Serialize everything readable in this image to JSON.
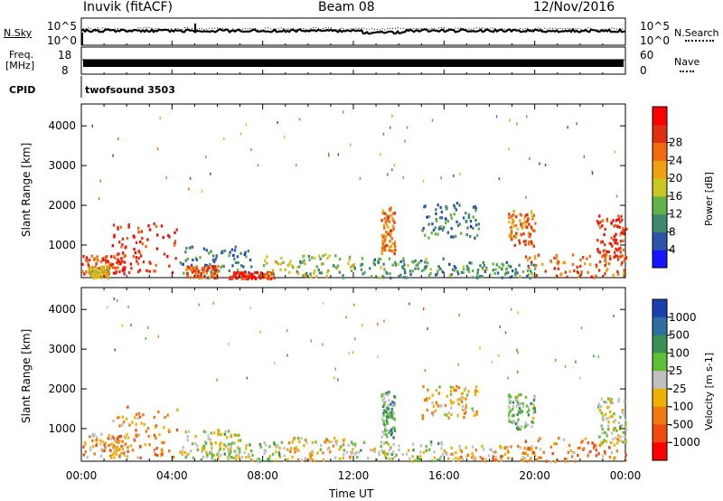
{
  "header": {
    "station": "Inuvik (fitACF)",
    "beam": "Beam 08",
    "date": "12/Nov/2016"
  },
  "strips": {
    "nsky_label": "N.Sky",
    "nsky_top": "10^5",
    "nsky_bottom": "10^0",
    "nsearch_label": "N.Search",
    "nsearch_top": "10^5",
    "nsearch_bottom": "10^0",
    "freq_label_1": "Freq.",
    "freq_label_2": "[MHz]",
    "freq_top": "18",
    "freq_bottom": "8",
    "nave_label": "Nave",
    "nave_top": "60",
    "nave_bottom": "0",
    "cpid_label": "CPID",
    "cpid_value": "twofsound 3503"
  },
  "axes": {
    "y_label": "Slant Range [km]",
    "x_label": "Time UT",
    "y_ticks": [
      "1000",
      "2000",
      "3000",
      "4000"
    ],
    "x_ticks": [
      "00:00",
      "04:00",
      "08:00",
      "12:00",
      "16:00",
      "20:00",
      "00:00"
    ]
  },
  "power_colorbar": {
    "label": "Power [dB]",
    "ticks": [
      "4",
      "8",
      "12",
      "16",
      "20",
      "24",
      "28"
    ],
    "colors": [
      "#1515ff",
      "#2c55a8",
      "#3f8a6f",
      "#62b34a",
      "#c8c820",
      "#f0a010",
      "#f06a10",
      "#e03010",
      "#ff0000"
    ]
  },
  "velocity_colorbar": {
    "label": "Velocity [m s-1]",
    "ticks": [
      "1000",
      "500",
      "100",
      "25",
      "-25",
      "-100",
      "-500",
      "-1000"
    ],
    "colors": [
      "#1a3fb0",
      "#2f6ea0",
      "#3a8f55",
      "#5fbf35",
      "#c0c0c0",
      "#f0b000",
      "#f07a10",
      "#f04a10",
      "#ff0000"
    ]
  },
  "chart_data": [
    {
      "type": "heatmap",
      "title": "Power",
      "xlabel": "Time UT",
      "ylabel": "Slant Range [km]",
      "xlim": [
        0,
        24
      ],
      "ylim": [
        180,
        4550
      ],
      "colorbar_label": "Power [dB]",
      "colorbar_range": [
        0,
        32
      ],
      "blobs": [
        {
          "x": [
            0.0,
            2.0
          ],
          "y": [
            300,
            800
          ],
          "v": 26
        },
        {
          "x": [
            1.3,
            4.2
          ],
          "y": [
            300,
            1600
          ],
          "v": 28
        },
        {
          "x": [
            0.3,
            1.2
          ],
          "y": [
            200,
            500
          ],
          "v": 18
        },
        {
          "x": [
            4.3,
            7.5
          ],
          "y": [
            200,
            1000
          ],
          "v": 8
        },
        {
          "x": [
            4.6,
            6.0
          ],
          "y": [
            200,
            500
          ],
          "v": 24
        },
        {
          "x": [
            6.5,
            8.5
          ],
          "y": [
            180,
            350
          ],
          "v": 28
        },
        {
          "x": [
            8.0,
            12.0
          ],
          "y": [
            200,
            800
          ],
          "v": 14
        },
        {
          "x": [
            12.0,
            16.0
          ],
          "y": [
            200,
            700
          ],
          "v": 10
        },
        {
          "x": [
            13.2,
            13.8
          ],
          "y": [
            800,
            2000
          ],
          "v": 22
        },
        {
          "x": [
            15.0,
            17.5
          ],
          "y": [
            1200,
            2100
          ],
          "v": 8
        },
        {
          "x": [
            16.0,
            20.0
          ],
          "y": [
            200,
            600
          ],
          "v": 10
        },
        {
          "x": [
            18.8,
            20.0
          ],
          "y": [
            1000,
            1900
          ],
          "v": 22
        },
        {
          "x": [
            19.5,
            24.0
          ],
          "y": [
            200,
            800
          ],
          "v": 24
        },
        {
          "x": [
            22.7,
            24.0
          ],
          "y": [
            600,
            1800
          ],
          "v": 26
        }
      ]
    },
    {
      "type": "heatmap",
      "title": "Velocity",
      "xlabel": "Time UT",
      "ylabel": "Slant Range [km]",
      "xlim": [
        0,
        24
      ],
      "ylim": [
        180,
        4550
      ],
      "colorbar_label": "Velocity [m s-1]",
      "colorbar_range": [
        -1000,
        1000
      ],
      "blobs": [
        {
          "x": [
            0.0,
            2.0
          ],
          "y": [
            300,
            900
          ],
          "v": -300
        },
        {
          "x": [
            1.3,
            4.2
          ],
          "y": [
            300,
            1600
          ],
          "v": -400
        },
        {
          "x": [
            4.3,
            7.0
          ],
          "y": [
            300,
            1000
          ],
          "v": 0
        },
        {
          "x": [
            5.0,
            9.0
          ],
          "y": [
            200,
            700
          ],
          "v": 80
        },
        {
          "x": [
            9.0,
            12.0
          ],
          "y": [
            200,
            800
          ],
          "v": -150
        },
        {
          "x": [
            12.0,
            16.0
          ],
          "y": [
            200,
            700
          ],
          "v": 60
        },
        {
          "x": [
            13.2,
            13.8
          ],
          "y": [
            800,
            2000
          ],
          "v": 300
        },
        {
          "x": [
            15.0,
            17.5
          ],
          "y": [
            1200,
            2100
          ],
          "v": -200
        },
        {
          "x": [
            16.0,
            20.0
          ],
          "y": [
            200,
            600
          ],
          "v": -250
        },
        {
          "x": [
            18.8,
            20.0
          ],
          "y": [
            1000,
            1900
          ],
          "v": 200
        },
        {
          "x": [
            19.5,
            24.0
          ],
          "y": [
            200,
            800
          ],
          "v": -350
        },
        {
          "x": [
            22.7,
            24.0
          ],
          "y": [
            600,
            1800
          ],
          "v": 0
        }
      ]
    }
  ]
}
